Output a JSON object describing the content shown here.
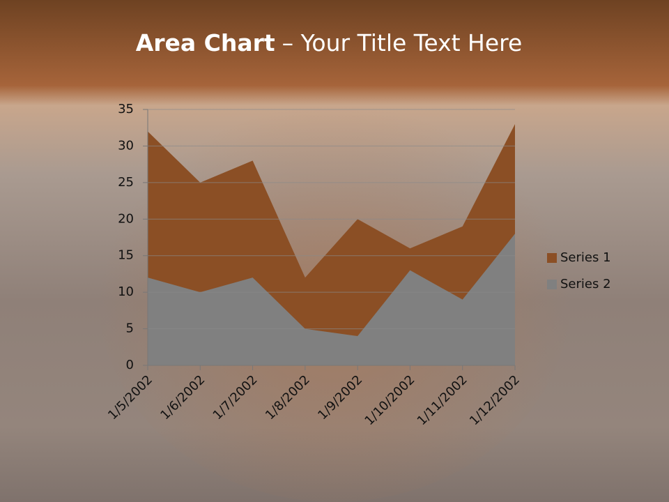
{
  "chart_data": {
    "type": "area",
    "title": {
      "bold": "Area Chart",
      "rest": "– Your Title Text Here"
    },
    "categories": [
      "1/5/2002",
      "1/6/2002",
      "1/7/2002",
      "1/8/2002",
      "1/9/2002",
      "1/10/2002",
      "1/11/2002",
      "1/12/2002"
    ],
    "series": [
      {
        "name": "Series 1",
        "color": "#8b4f25",
        "values": [
          32,
          25,
          28,
          12,
          20,
          16,
          19,
          33
        ]
      },
      {
        "name": "Series 2",
        "color": "#808080",
        "values": [
          12,
          10,
          12,
          5,
          4,
          13,
          9,
          18
        ]
      }
    ],
    "ylim": [
      0,
      35
    ],
    "yticks": [
      0,
      5,
      10,
      15,
      20,
      25,
      30,
      35
    ],
    "grid": true,
    "legend": "right"
  }
}
